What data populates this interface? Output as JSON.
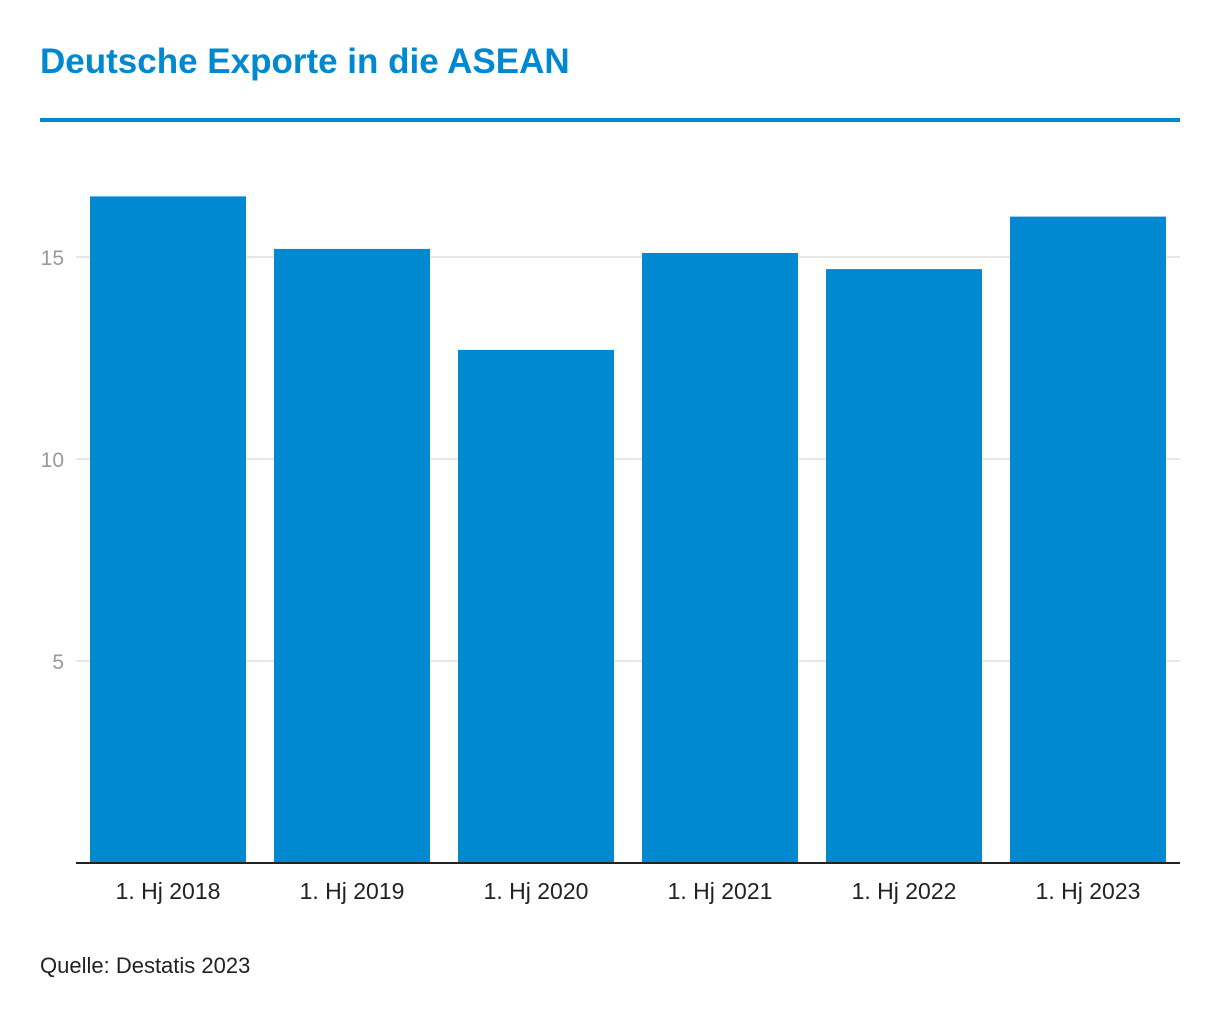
{
  "title": "Deutsche Exporte in die ASEAN",
  "source": "Quelle: Destatis 2023",
  "colors": {
    "bar": "#0088d1",
    "title": "#0088d1",
    "grid": "#e0e0e0",
    "axis": "#222222",
    "tick_label": "#9a9a9a",
    "category_label": "#222222"
  },
  "chart_data": {
    "type": "bar",
    "categories": [
      "1. Hj 2018",
      "1. Hj 2019",
      "1. Hj 2020",
      "1. Hj 2021",
      "1. Hj 2022",
      "1. Hj 2023"
    ],
    "values": [
      16.5,
      15.2,
      12.7,
      15.1,
      14.7,
      16.0
    ],
    "yticks": [
      5,
      10,
      15
    ],
    "ylim": [
      0,
      18
    ],
    "grid": true,
    "legend": "none"
  }
}
